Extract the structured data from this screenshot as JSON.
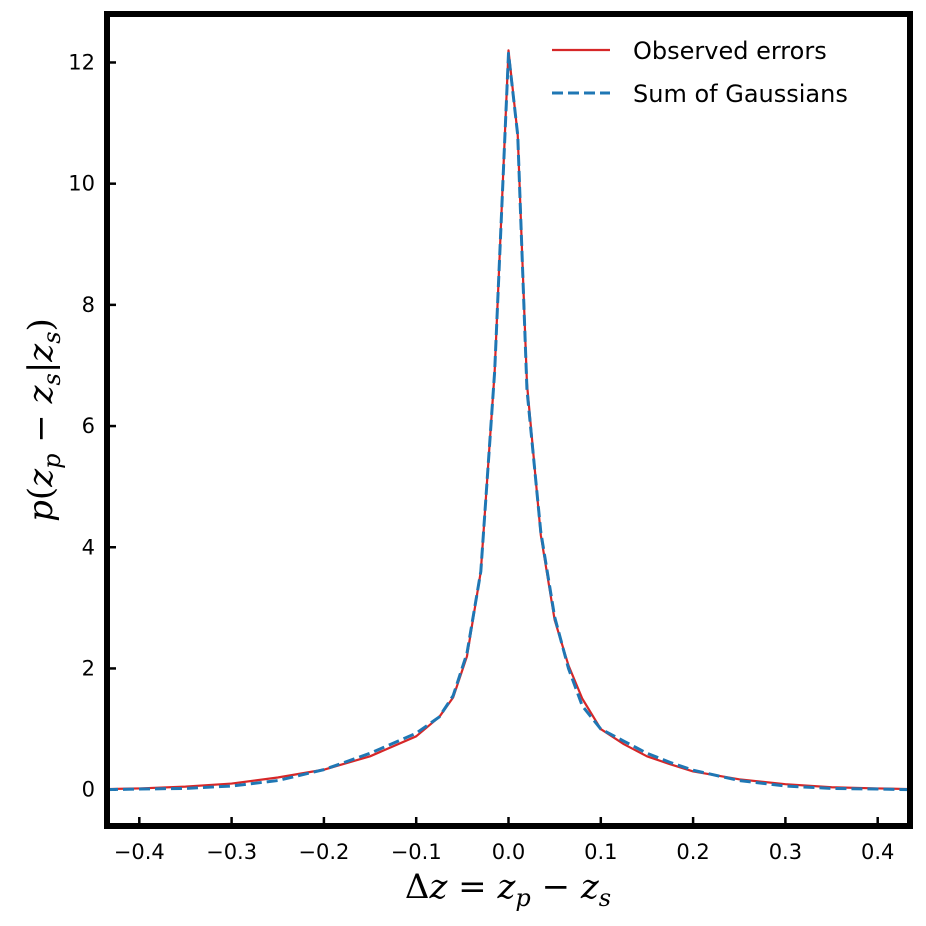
{
  "chart_data": {
    "type": "line",
    "xlim": [
      -0.435,
      0.435
    ],
    "ylim": [
      -0.6,
      12.8
    ],
    "xticks": [
      -0.4,
      -0.3,
      -0.2,
      -0.1,
      0.0,
      0.1,
      0.2,
      0.3,
      0.4
    ],
    "xtick_labels": [
      "−0.4",
      "−0.3",
      "−0.2",
      "−0.1",
      "0.0",
      "0.1",
      "0.2",
      "0.3",
      "0.4"
    ],
    "yticks": [
      0,
      2,
      4,
      6,
      8,
      10,
      12
    ],
    "ytick_labels": [
      "0",
      "2",
      "4",
      "6",
      "8",
      "10",
      "12"
    ],
    "xlabel": {
      "delta": "Δ",
      "z": "z",
      "eq": " = ",
      "zp": "z",
      "p": "p",
      "minus": " − ",
      "zs": "z",
      "s": "s"
    },
    "ylabel": {
      "p": "p",
      "open": "(",
      "zp": "z",
      "p_sub": "p",
      "minus": " − ",
      "zs": "z",
      "s_sub": "s",
      "bar": "|",
      "zs2": "z",
      "s_sub2": "s",
      "close": ")"
    },
    "legend_position": "top-right",
    "grid": false,
    "series": [
      {
        "name": "Observed errors",
        "color": "#d62728",
        "style": "solid",
        "x": [
          -0.435,
          -0.4,
          -0.35,
          -0.3,
          -0.25,
          -0.2,
          -0.15,
          -0.1,
          -0.075,
          -0.06,
          -0.045,
          -0.03,
          -0.015,
          0.0,
          0.01,
          0.02,
          0.035,
          0.05,
          0.065,
          0.08,
          0.1,
          0.125,
          0.15,
          0.175,
          0.2,
          0.25,
          0.3,
          0.35,
          0.4,
          0.435
        ],
        "y": [
          0.01,
          0.02,
          0.05,
          0.1,
          0.2,
          0.33,
          0.55,
          0.88,
          1.2,
          1.52,
          2.2,
          3.6,
          6.9,
          12.2,
          10.8,
          6.7,
          4.2,
          2.8,
          2.05,
          1.5,
          1.0,
          0.75,
          0.55,
          0.42,
          0.3,
          0.17,
          0.09,
          0.04,
          0.02,
          0.01
        ]
      },
      {
        "name": "Sum of Gaussians",
        "color": "#1f77b4",
        "style": "dashed",
        "x": [
          -0.435,
          -0.4,
          -0.35,
          -0.3,
          -0.25,
          -0.2,
          -0.15,
          -0.1,
          -0.075,
          -0.06,
          -0.045,
          -0.03,
          -0.015,
          0.0,
          0.01,
          0.02,
          0.035,
          0.05,
          0.065,
          0.08,
          0.1,
          0.125,
          0.15,
          0.175,
          0.2,
          0.25,
          0.3,
          0.35,
          0.4,
          0.435
        ],
        "y": [
          0.0,
          0.01,
          0.02,
          0.06,
          0.15,
          0.33,
          0.6,
          0.93,
          1.2,
          1.55,
          2.25,
          3.6,
          6.9,
          12.15,
          10.8,
          6.6,
          4.25,
          2.85,
          2.0,
          1.38,
          1.0,
          0.8,
          0.6,
          0.45,
          0.32,
          0.15,
          0.06,
          0.02,
          0.01,
          0.0
        ]
      }
    ]
  }
}
